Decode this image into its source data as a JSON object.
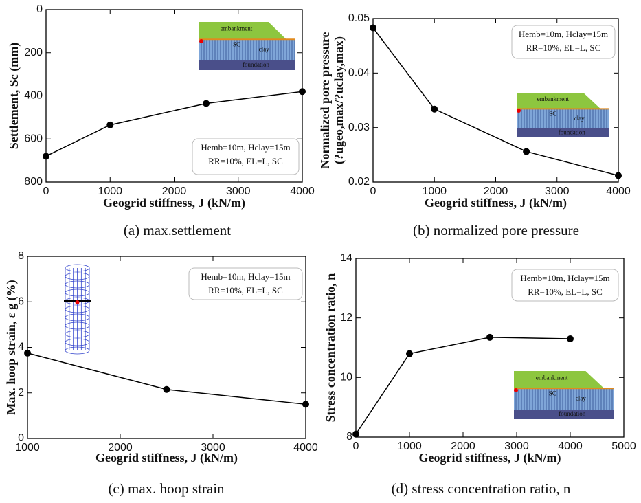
{
  "chart_data": [
    {
      "type": "line",
      "caption": "(a) max.settlement",
      "xlabel": "Geogrid stiffness,  J (kN/m)",
      "ylabel": [
        "Settlement, Sc (mm)"
      ],
      "x": [
        0,
        1000,
        2500,
        4000
      ],
      "series": [
        {
          "color": "#000000",
          "values": [
            680,
            535,
            435,
            380
          ]
        }
      ],
      "xlim": [
        0,
        4000
      ],
      "xticks": [
        0,
        1000,
        2000,
        3000,
        4000
      ],
      "ylim": [
        800,
        0
      ],
      "yticks": [
        0,
        200,
        400,
        600,
        800
      ],
      "annotation": [
        "Hemb=10m, Hclay=15m",
        "RR=10%, EL=L, SC"
      ],
      "inset": [
        "embankment",
        "SC",
        "clay",
        "foundation"
      ]
    },
    {
      "type": "line",
      "caption": "(b) normalized pore pressure",
      "xlabel": "Geogrid stiffness,  J (kN/m)",
      "ylabel": [
        "Normalized pore pressure",
        "(?ugeo,max/?uclay,max)"
      ],
      "x": [
        0,
        1000,
        2500,
        4000
      ],
      "series": [
        {
          "color": "#000000",
          "values": [
            0.0483,
            0.0334,
            0.0256,
            0.0212
          ]
        }
      ],
      "xlim": [
        0,
        4000
      ],
      "xticks": [
        0,
        1000,
        2000,
        3000,
        4000
      ],
      "ylim": [
        0.02,
        0.05
      ],
      "yticks": [
        0.02,
        0.03,
        0.04,
        0.05
      ],
      "annotation": [
        "Hemb=10m, Hclay=15m",
        "RR=10%, EL=L, SC"
      ],
      "inset": [
        "embankment",
        "SC",
        "clay",
        "foundation"
      ]
    },
    {
      "type": "line",
      "caption": "(c) max. hoop strain",
      "xlabel": "Geogrid stiffness,  J (kN/m)",
      "ylabel": [
        "Max. hoop strain, ε g (%)"
      ],
      "x": [
        1000,
        2500,
        4000
      ],
      "series": [
        {
          "color": "#000000",
          "values": [
            3.75,
            2.15,
            1.5
          ]
        }
      ],
      "xlim": [
        1000,
        4000
      ],
      "xticks": [
        1000,
        2000,
        3000,
        4000
      ],
      "ylim": [
        0,
        8
      ],
      "yticks": [
        0,
        2,
        4,
        6,
        8
      ],
      "annotation": [
        "Hemb=10m, Hclay=15m",
        "RR=10%, EL=L, SC"
      ]
    },
    {
      "type": "line",
      "caption": "(d) stress concentration ratio,  n",
      "xlabel": "Geogrid stiffness,  J (kN/m)",
      "ylabel": [
        "Stress concentration ratio,  n"
      ],
      "x": [
        0,
        1000,
        2500,
        4000
      ],
      "series": [
        {
          "color": "#000000",
          "values": [
            8.1,
            10.8,
            11.35,
            11.3
          ]
        }
      ],
      "xlim": [
        0,
        5000
      ],
      "xticks": [
        0,
        1000,
        2000,
        3000,
        4000,
        5000
      ],
      "ylim": [
        8,
        14
      ],
      "yticks": [
        8,
        10,
        12,
        14
      ],
      "annotation": [
        "Hemb=10m, Hclay=15m",
        "RR=10%, EL=L, SC"
      ],
      "inset": [
        "embankment",
        "SC",
        "clay",
        "foundation"
      ]
    }
  ]
}
